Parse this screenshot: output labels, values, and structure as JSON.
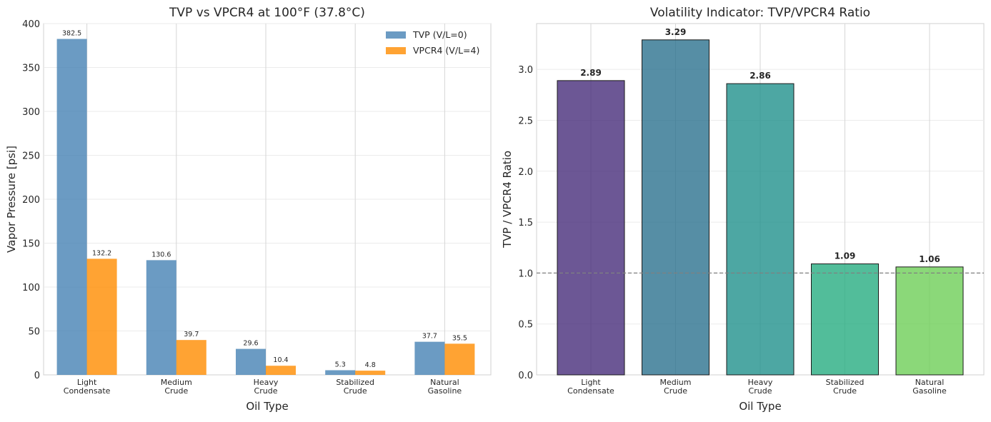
{
  "chart_data": [
    {
      "type": "bar",
      "title": "TVP vs VPCR4 at 100°F (37.8°C)",
      "xlabel": "Oil Type",
      "ylabel": "Vapor Pressure [psi]",
      "ylim": [
        0,
        400
      ],
      "yticks": [
        "0",
        "50",
        "100",
        "150",
        "200",
        "250",
        "300",
        "350",
        "400"
      ],
      "grid": true,
      "legend_position": "top-right",
      "categories": [
        [
          "Light",
          "Condensate"
        ],
        [
          "Medium",
          "Crude"
        ],
        [
          "Heavy",
          "Crude"
        ],
        [
          "Stabilized",
          "Crude"
        ],
        [
          "Natural",
          "Gasoline"
        ]
      ],
      "series": [
        {
          "name": "TVP (V/L=0)",
          "color": "#4682b4",
          "values": [
            382.5,
            130.6,
            29.6,
            5.3,
            37.7
          ],
          "labels": [
            "382.5",
            "130.6",
            "29.6",
            "5.3",
            "37.7"
          ]
        },
        {
          "name": "VPCR4 (V/L=4)",
          "color": "#ff8c00",
          "values": [
            132.2,
            39.7,
            10.4,
            4.8,
            35.5
          ],
          "labels": [
            "132.2",
            "39.7",
            "10.4",
            "4.8",
            "35.5"
          ]
        }
      ]
    },
    {
      "type": "bar",
      "title": "Volatility Indicator: TVP/VPCR4 Ratio",
      "xlabel": "Oil Type",
      "ylabel": "TVP / VPCR4 Ratio",
      "ylim": [
        0,
        3.45
      ],
      "yticks": [
        "0.0",
        "0.5",
        "1.0",
        "1.5",
        "2.0",
        "2.5",
        "3.0"
      ],
      "grid": true,
      "reference_line": 1.0,
      "categories": [
        [
          "Light",
          "Condensate"
        ],
        [
          "Medium",
          "Crude"
        ],
        [
          "Heavy",
          "Crude"
        ],
        [
          "Stabilized",
          "Crude"
        ],
        [
          "Natural",
          "Gasoline"
        ]
      ],
      "values": [
        2.89,
        3.29,
        2.86,
        1.09,
        1.06
      ],
      "labels": [
        "2.89",
        "3.29",
        "2.86",
        "1.09",
        "1.06"
      ],
      "colors": [
        "#472d7b",
        "#2c728e",
        "#21918c",
        "#27ad81",
        "#6ece58"
      ]
    }
  ]
}
